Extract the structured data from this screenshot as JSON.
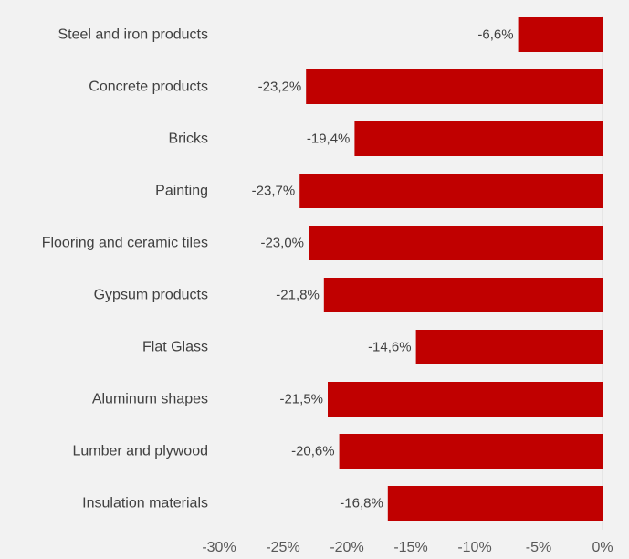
{
  "chart_data": {
    "type": "bar",
    "orientation": "horizontal",
    "categories": [
      "Steel and iron products",
      "Concrete products",
      "Bricks",
      "Painting",
      "Flooring and ceramic tiles",
      "Gypsum products",
      "Flat Glass",
      "Aluminum shapes",
      "Lumber and plywood",
      "Insulation materials"
    ],
    "values": [
      -6.6,
      -23.2,
      -19.4,
      -23.7,
      -23.0,
      -21.8,
      -14.6,
      -21.5,
      -20.6,
      -16.8
    ],
    "data_labels": [
      "-6,6%",
      "-23,2%",
      "-19,4%",
      "-23,7%",
      "-23,0%",
      "-21,8%",
      "-14,6%",
      "-21,5%",
      "-20,6%",
      "-16,8%"
    ],
    "xlim": [
      -30,
      0
    ],
    "x_ticks": [
      -30,
      -25,
      -20,
      -15,
      -10,
      -5,
      0
    ],
    "x_tick_labels": [
      "-30%",
      "-25%",
      "-20%",
      "-15%",
      "-10%",
      "-5%",
      "0%"
    ],
    "grid": false,
    "legend": "none",
    "bar_color": "#c00000",
    "background_color": "#f2f2f2"
  }
}
